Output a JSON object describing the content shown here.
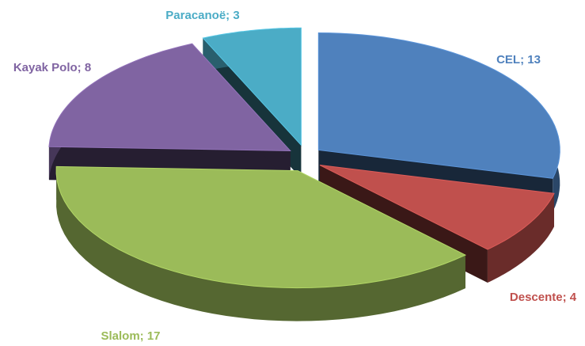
{
  "chart_data": {
    "type": "pie3d",
    "values": [
      13,
      4,
      17,
      8,
      3
    ],
    "value_labels": [
      "CEL; 13",
      "Descente; 4",
      "Slalom; 17",
      "Kayak Polo; 8",
      "Paracanoë; 3"
    ],
    "colors": [
      "#4f81bd",
      "#c0504d",
      "#9bbb59",
      "#8064a2",
      "#4bacc6"
    ],
    "label_colors": [
      "#4f81bd",
      "#c0504d",
      "#9bbb59",
      "#8064a2",
      "#4bacc6"
    ],
    "exploded": true
  }
}
